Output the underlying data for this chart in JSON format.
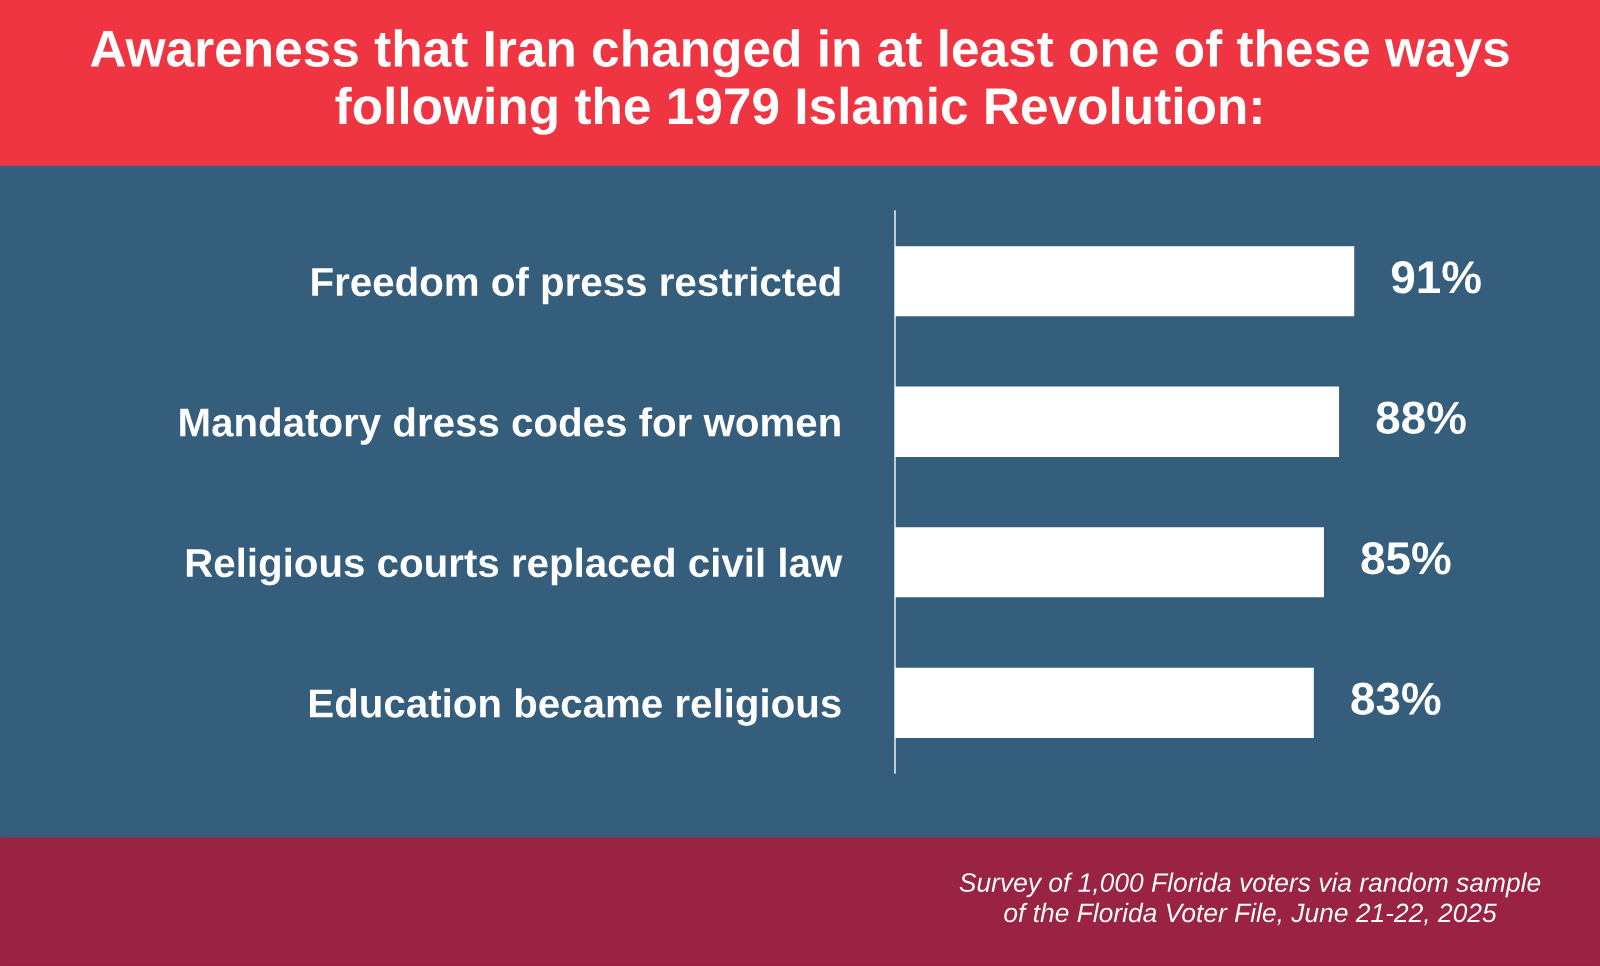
{
  "chart_data": {
    "type": "bar",
    "orientation": "horizontal",
    "title": "Awareness that Iran changed in at least one of these ways\nfollowing the 1979 Islamic Revolution:",
    "categories": [
      "Freedom of press restricted",
      "Mandatory dress codes for women",
      "Religious courts replaced civil law",
      "Education became religious"
    ],
    "values": [
      91,
      88,
      85,
      83
    ],
    "value_labels": [
      "91%",
      "88%",
      "85%",
      "83%"
    ],
    "color": "#ffffff",
    "grid": false,
    "legend": false,
    "annotations": [
      "Survey of 1,000 Florida voters via random sample\nof the Florida Voter File, June 21-22, 2025"
    ]
  }
}
